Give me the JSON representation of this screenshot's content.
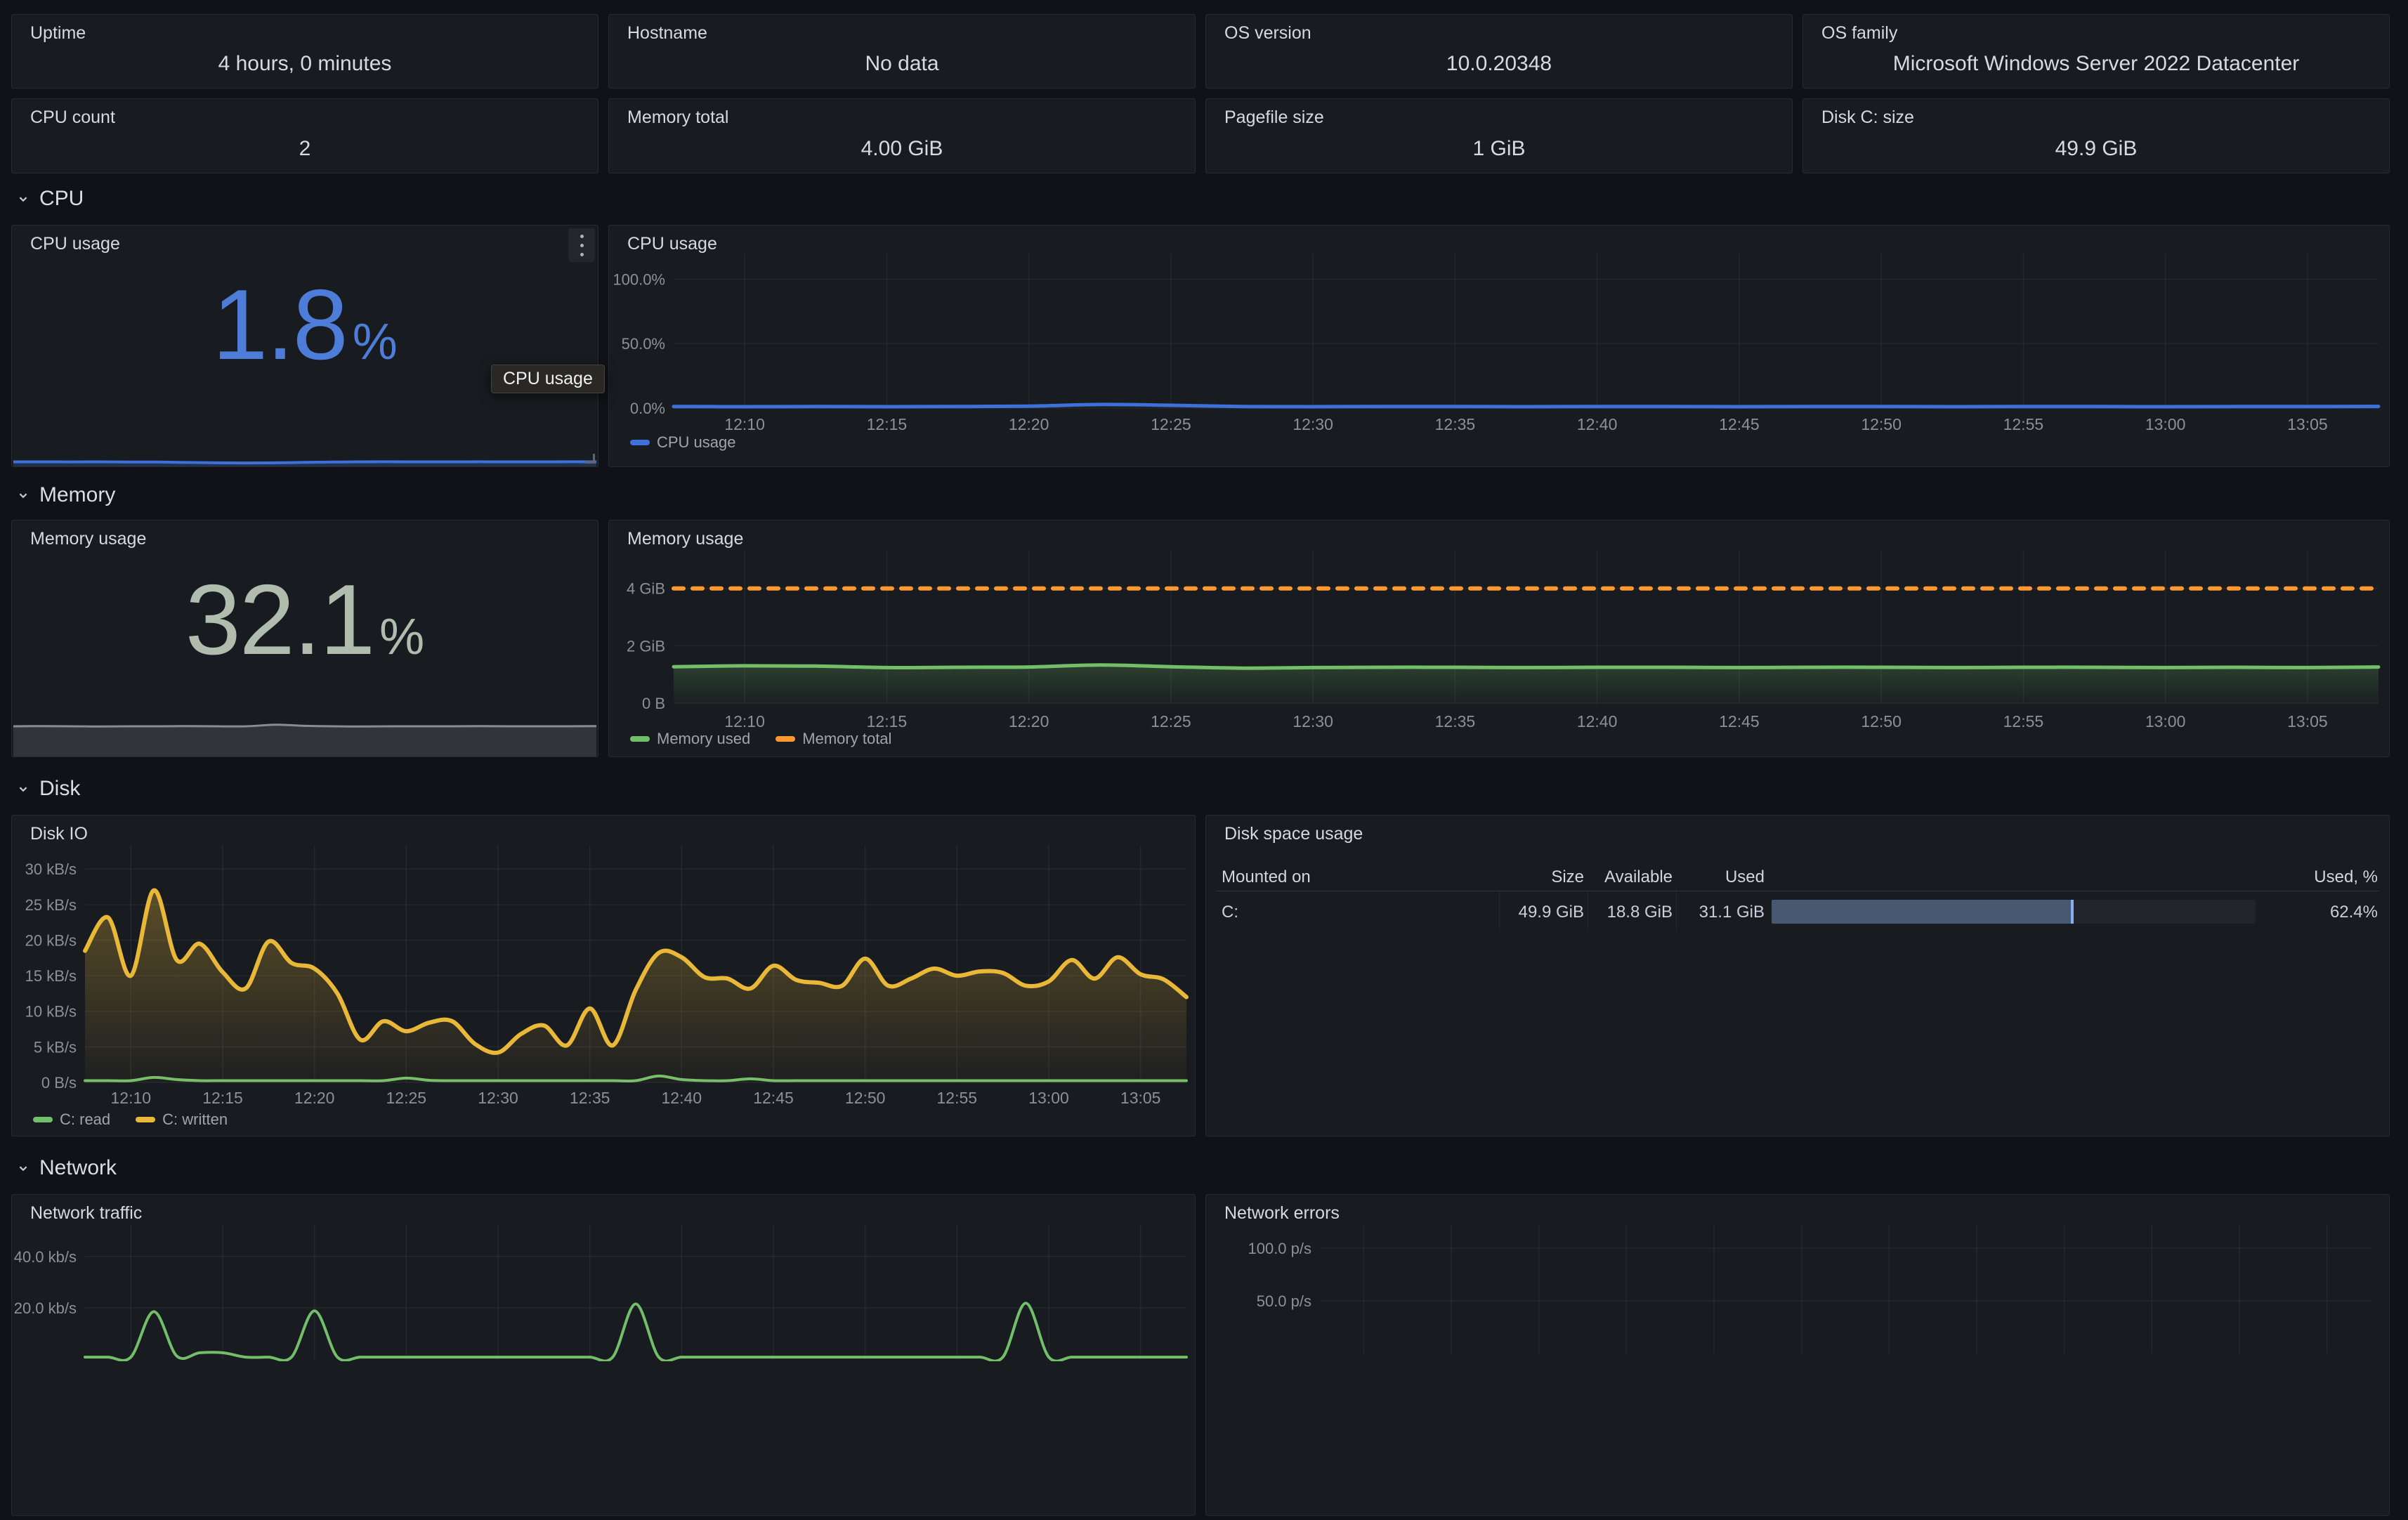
{
  "colors": {
    "page_bg": "#111217",
    "panel_bg": "#181b1f",
    "blue_line": "#3d71d9",
    "blue_stat": "#4d7dd9",
    "green": "#73bf69",
    "orange": "#ff9830",
    "yellow": "#eab839",
    "sage_stat": "#b0bdae",
    "bar_fill": "#485871",
    "bar_edge": "#86aef2",
    "spark_grey_line": "#878d96"
  },
  "icons": {
    "panel_menu": "kebab-vertical-icon",
    "section_toggle": "chevron-down-icon"
  },
  "top_stats": [
    {
      "label": "Uptime",
      "value": "4 hours, 0 minutes"
    },
    {
      "label": "Hostname",
      "value": "No data"
    },
    {
      "label": "OS version",
      "value": "10.0.20348"
    },
    {
      "label": "OS family",
      "value": "Microsoft Windows Server 2022 Datacenter"
    },
    {
      "label": "CPU count",
      "value": "2"
    },
    {
      "label": "Memory total",
      "value": "4.00 GiB"
    },
    {
      "label": "Pagefile size",
      "value": "1 GiB"
    },
    {
      "label": "Disk C: size",
      "value": "49.9 GiB"
    }
  ],
  "sections": {
    "cpu": "CPU",
    "memory": "Memory",
    "disk": "Disk",
    "network": "Network"
  },
  "cpu_stat": {
    "title": "CPU usage",
    "value": "1.8",
    "unit": "%",
    "tooltip": "CPU usage",
    "sparkline": [
      1.5,
      1.5,
      1.48,
      1.5,
      1.46,
      1.42,
      1.3,
      1.18,
      1.12,
      1.18,
      1.32,
      1.45,
      1.5,
      1.52,
      1.5,
      1.5,
      1.52,
      1.5,
      1.5,
      1.52,
      1.5
    ]
  },
  "memory_stat": {
    "title": "Memory usage",
    "value": "32.1",
    "unit": "%",
    "sparkline": [
      1.25,
      1.26,
      1.25,
      1.24,
      1.25,
      1.25,
      1.26,
      1.25,
      1.25,
      1.32,
      1.27,
      1.25,
      1.24,
      1.25,
      1.25,
      1.25,
      1.26,
      1.25,
      1.25,
      1.25,
      1.26
    ]
  },
  "chart_data": [
    {
      "id": "cpu_usage_ts",
      "type": "line",
      "title": "CPU usage",
      "xlabel": "",
      "ylabel": "",
      "ylim": [
        0,
        110
      ],
      "grid": true,
      "legend_position": "bottom-left",
      "x_ticks": [
        "12:10",
        "12:15",
        "12:20",
        "12:25",
        "12:30",
        "12:35",
        "12:40",
        "12:45",
        "12:50",
        "12:55",
        "13:00",
        "13:05"
      ],
      "y_ticks": [
        {
          "value": 0,
          "label": "0.0%"
        },
        {
          "value": 50,
          "label": "50.0%"
        },
        {
          "value": 100,
          "label": "100.0%"
        }
      ],
      "series": [
        {
          "name": "CPU usage",
          "color": "#3d71d9",
          "width": 5,
          "values": [
            1.2,
            1.1,
            1.2,
            1.1,
            1.2,
            1.5,
            2.8,
            2.2,
            1.2,
            1.1,
            1.2,
            1.2,
            1.1,
            1.2,
            1.2,
            1.1,
            1.2,
            1.2,
            1.1,
            1.2,
            1.2,
            1.1,
            1.2,
            1.2,
            1.3
          ]
        }
      ]
    },
    {
      "id": "memory_usage_ts",
      "type": "line",
      "title": "Memory usage",
      "xlabel": "",
      "ylabel": "",
      "ylim": [
        0,
        4.9
      ],
      "grid": true,
      "legend_position": "bottom-left",
      "x_ticks": [
        "12:10",
        "12:15",
        "12:20",
        "12:25",
        "12:30",
        "12:35",
        "12:40",
        "12:45",
        "12:50",
        "12:55",
        "13:00",
        "13:05"
      ],
      "y_ticks": [
        {
          "value": 0,
          "label": "0 B"
        },
        {
          "value": 2,
          "label": "2 GiB"
        },
        {
          "value": 4,
          "label": "4 GiB"
        }
      ],
      "series": [
        {
          "name": "Memory used",
          "color": "#73bf69",
          "width": 5,
          "fill": true,
          "fill_opacity": 0.22,
          "values": [
            1.27,
            1.3,
            1.29,
            1.24,
            1.25,
            1.26,
            1.33,
            1.27,
            1.22,
            1.24,
            1.25,
            1.25,
            1.24,
            1.25,
            1.25,
            1.24,
            1.25,
            1.25,
            1.24,
            1.25,
            1.25,
            1.24,
            1.25,
            1.24,
            1.26
          ]
        },
        {
          "name": "Memory total",
          "color": "#ff9830",
          "width": 6,
          "dash": "14 13",
          "values": [
            4,
            4
          ]
        }
      ]
    },
    {
      "id": "disk_io_ts",
      "type": "line",
      "title": "Disk IO",
      "xlabel": "",
      "ylabel": "",
      "ylim": [
        0,
        31.6
      ],
      "grid": true,
      "legend_position": "bottom-left",
      "x_ticks": [
        "12:10",
        "12:15",
        "12:20",
        "12:25",
        "12:30",
        "12:35",
        "12:40",
        "12:45",
        "12:50",
        "12:55",
        "13:00",
        "13:05"
      ],
      "y_ticks": [
        {
          "value": 0,
          "label": "0 B/s"
        },
        {
          "value": 5,
          "label": "5 kB/s"
        },
        {
          "value": 10,
          "label": "10 kB/s"
        },
        {
          "value": 15,
          "label": "15 kB/s"
        },
        {
          "value": 20,
          "label": "20 kB/s"
        },
        {
          "value": 25,
          "label": "25 kB/s"
        },
        {
          "value": 30,
          "label": "30 kB/s"
        }
      ],
      "series": [
        {
          "name": "C: read",
          "color": "#73bf69",
          "width": 4,
          "values": [
            0.25,
            0.25,
            0.25,
            0.7,
            0.4,
            0.25,
            0.25,
            0.25,
            0.25,
            0.25,
            0.25,
            0.25,
            0.25,
            0.25,
            0.6,
            0.3,
            0.25,
            0.25,
            0.25,
            0.25,
            0.25,
            0.25,
            0.25,
            0.25,
            0.25,
            0.9,
            0.4,
            0.25,
            0.25,
            0.5,
            0.25,
            0.25,
            0.25,
            0.25,
            0.25,
            0.25,
            0.25,
            0.25,
            0.25,
            0.25,
            0.25,
            0.25,
            0.25,
            0.25,
            0.25,
            0.25,
            0.25,
            0.25,
            0.25
          ]
        },
        {
          "name": "C: written",
          "color": "#eab839",
          "width": 6,
          "fill": true,
          "fill_opacity": 0.32,
          "values": [
            18.5,
            23.2,
            15.0,
            27.0,
            17.2,
            19.5,
            15.5,
            13.2,
            19.8,
            16.8,
            16.0,
            12.5,
            6.0,
            8.6,
            7.2,
            8.4,
            8.6,
            5.4,
            4.2,
            6.8,
            8.0,
            5.2,
            10.4,
            5.2,
            13.0,
            18.2,
            17.6,
            14.8,
            14.6,
            13.2,
            16.4,
            14.4,
            14.0,
            13.6,
            17.4,
            13.6,
            14.6,
            16.0,
            15.0,
            15.6,
            15.4,
            13.6,
            14.2,
            17.2,
            14.6,
            17.6,
            15.2,
            14.5,
            12.0
          ]
        }
      ]
    },
    {
      "id": "network_traffic_ts",
      "type": "line",
      "title": "Network traffic",
      "xlabel": "",
      "ylabel": "",
      "ylim": [
        0,
        47.6
      ],
      "grid": true,
      "legend_position": "bottom-left",
      "x_ticks": [
        "12:10",
        "12:15",
        "12:20",
        "12:25",
        "12:30",
        "12:35",
        "12:40",
        "12:45",
        "12:50",
        "12:55",
        "13:00",
        "13:05"
      ],
      "x_tick_labels_visible": false,
      "y_ticks": [
        {
          "value": 20,
          "label": "20.0 kb/s"
        },
        {
          "value": 40,
          "label": "40.0 kb/s"
        }
      ],
      "series": [
        {
          "name": "Network traffic",
          "color": "#73bf69",
          "width": 4,
          "values": [
            0.8,
            0.8,
            0.8,
            18.5,
            1.2,
            2.5,
            2.5,
            0.8,
            0.8,
            0.8,
            18.8,
            0.8,
            0.8,
            0.8,
            0.8,
            0.8,
            0.8,
            0.8,
            0.8,
            0.8,
            0.8,
            0.8,
            0.8,
            0.8,
            21.5,
            0.8,
            0.8,
            0.8,
            0.8,
            0.8,
            0.8,
            0.8,
            0.8,
            0.8,
            0.8,
            0.8,
            0.8,
            0.8,
            0.8,
            0.8,
            0.8,
            21.8,
            0.8,
            0.8,
            0.8,
            0.8,
            0.8,
            0.8,
            0.8
          ]
        }
      ]
    },
    {
      "id": "network_errors_ts",
      "type": "line",
      "title": "Network errors",
      "xlabel": "",
      "ylabel": "",
      "ylim": [
        0,
        110.7
      ],
      "grid": true,
      "legend_position": "bottom-left",
      "x_ticks": [
        "12:10",
        "12:15",
        "12:20",
        "12:25",
        "12:30",
        "12:35",
        "12:40",
        "12:45",
        "12:50",
        "12:55",
        "13:00",
        "13:05"
      ],
      "x_tick_labels_visible": false,
      "y_ticks": [
        {
          "value": 50,
          "label": "50.0 p/s"
        },
        {
          "value": 100,
          "label": "100.0 p/s"
        }
      ],
      "series": []
    },
    {
      "id": "disk_space_table",
      "type": "table",
      "title": "Disk space usage",
      "columns": [
        "Mounted on",
        "Size",
        "Available",
        "Used",
        "Used, %"
      ],
      "rows": [
        {
          "mounted_on": "C:",
          "size": "49.9 GiB",
          "available": "18.8 GiB",
          "used": "31.1 GiB",
          "used_pct": 62.4,
          "used_pct_label": "62.4%"
        }
      ]
    }
  ]
}
